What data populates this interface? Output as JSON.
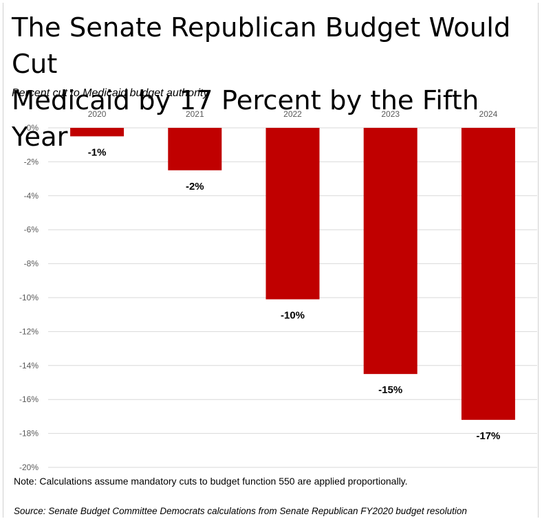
{
  "title": "The Senate Republican Budget Would Cut\nMedicaid by 17 Percent by the Fifth Year",
  "note": "Note: Calculations assume mandatory cuts to budget function 550 are applied proportionally.",
  "source": "Source: Senate Budget Committee Democrats calculations from Senate Republican FY2020 budget resolution",
  "colors": {
    "bar": "#c00000",
    "grid": "#d9d9d9",
    "tick_text": "#595959"
  },
  "chart_data": {
    "type": "bar",
    "title": "",
    "subtitle": "Percent cut to Medicaid budget authority",
    "xlabel": "",
    "ylabel": "",
    "categories": [
      "2020",
      "2021",
      "2022",
      "2023",
      "2024"
    ],
    "values": [
      -0.5,
      -2.5,
      -10.1,
      -14.5,
      -17.2
    ],
    "data_labels": [
      "-1%",
      "-2%",
      "-10%",
      "-15%",
      "-17%"
    ],
    "ylim": [
      -20,
      0
    ],
    "yticks": [
      0,
      -2,
      -4,
      -6,
      -8,
      -10,
      -12,
      -14,
      -16,
      -18,
      -20
    ],
    "ytick_labels": [
      "0%",
      "-2%",
      "-4%",
      "-6%",
      "-8%",
      "-10%",
      "-12%",
      "-14%",
      "-16%",
      "-18%",
      "-20%"
    ],
    "x_axis_position": "top",
    "grid": true,
    "legend": "none"
  }
}
